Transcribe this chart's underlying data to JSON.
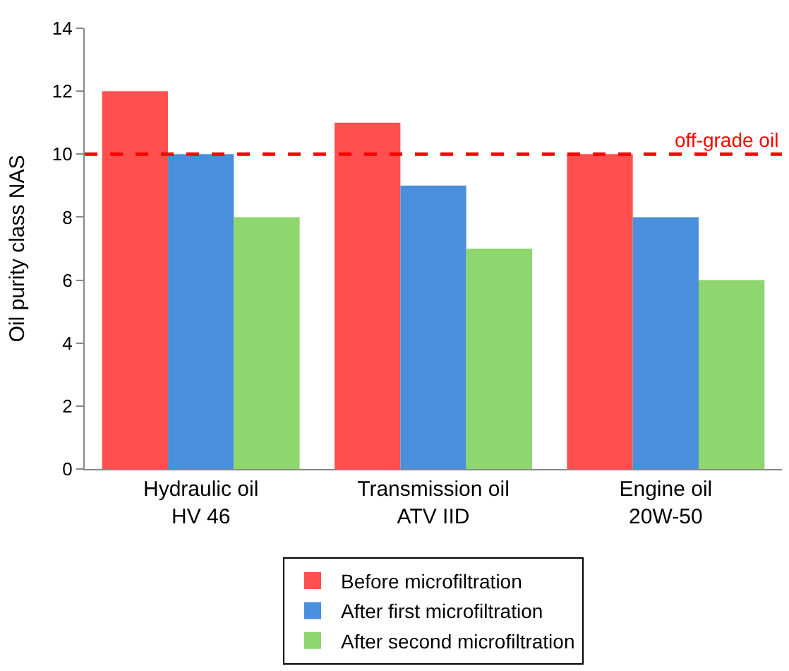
{
  "chart_data": {
    "type": "bar",
    "ylabel": "Oil purity class NAS",
    "categories": [
      "Hydraulic oil\nHV 46",
      "Transmission oil\nATV IID",
      "Engine oil\n20W-50"
    ],
    "series": [
      {
        "name": "Before microfiltration",
        "color": "#ff4f4f",
        "values": [
          12,
          11,
          10
        ]
      },
      {
        "name": "After first microfiltration",
        "color": "#4a8fdc",
        "values": [
          10,
          9,
          8
        ]
      },
      {
        "name": "After second microfiltration",
        "color": "#8ed66e",
        "values": [
          8,
          7,
          6
        ]
      }
    ],
    "ylim": [
      0,
      14
    ],
    "yticks": [
      0,
      2,
      4,
      6,
      8,
      10,
      12,
      14
    ],
    "legend": "bottom",
    "ref_lines": [
      {
        "axis": "y",
        "value": 10,
        "label": "off-grade oil",
        "color": "#ff0000",
        "line_style": "dashed"
      }
    ]
  }
}
